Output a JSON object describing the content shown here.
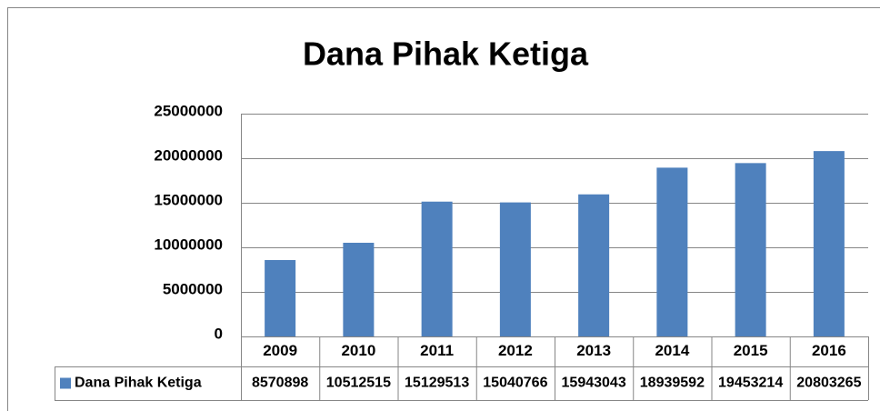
{
  "chart_data": {
    "type": "bar",
    "title": "Dana Pihak Ketiga",
    "categories": [
      "2009",
      "2010",
      "2011",
      "2012",
      "2013",
      "2014",
      "2015",
      "2016"
    ],
    "series": [
      {
        "name": "Dana Pihak Ketiga",
        "color": "#4f81bd",
        "values": [
          8570898,
          10512515,
          15129513,
          15040766,
          15943043,
          18939592,
          19453214,
          20803265
        ]
      }
    ],
    "ylim": [
      0,
      25000000
    ],
    "yticks": [
      0,
      5000000,
      10000000,
      15000000,
      20000000,
      25000000
    ],
    "grid": true
  }
}
